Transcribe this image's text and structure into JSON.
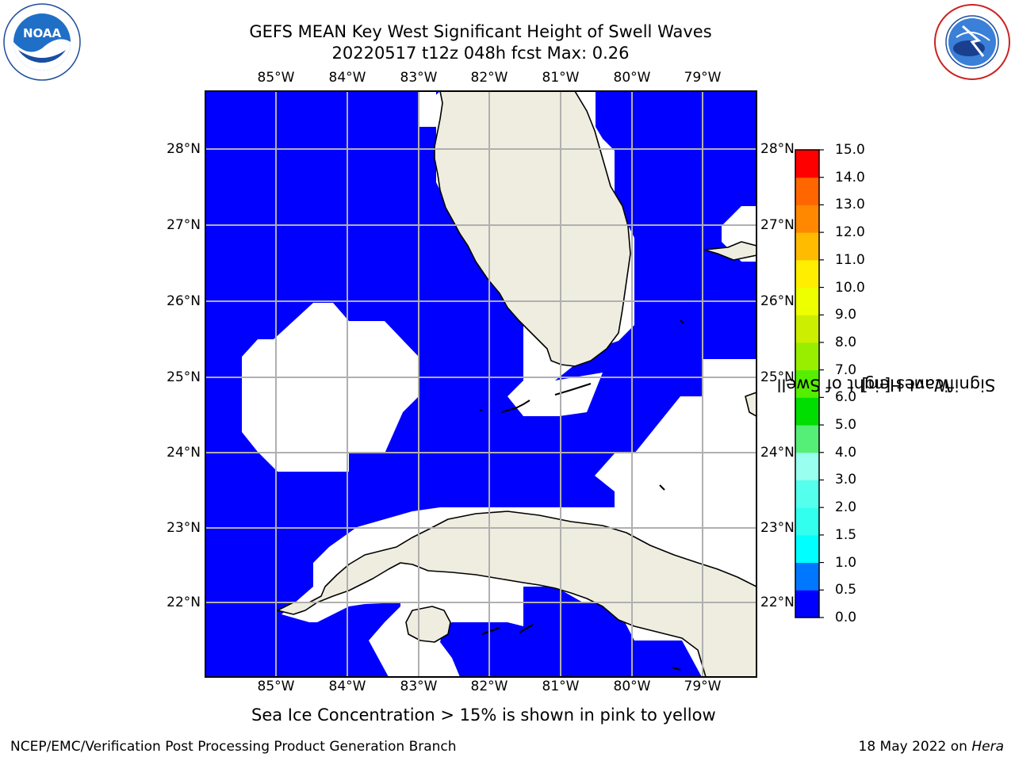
{
  "header": {
    "title_line1": "GEFS MEAN Key West Significant Height of Swell Waves",
    "title_line2": "20220517 t12z 048h fcst   Max: 0.26"
  },
  "map": {
    "lon_ticks": [
      "85°W",
      "84°W",
      "83°W",
      "82°W",
      "81°W",
      "80°W",
      "79°W"
    ],
    "lat_ticks": [
      "28°N",
      "27°N",
      "26°N",
      "25°N",
      "24°N",
      "23°N",
      "22°N"
    ],
    "colors": {
      "sea": "#0000ff",
      "land": "#eeeddf",
      "grid": "#b0b0b0",
      "no_data": "#ffffff"
    }
  },
  "colorbar": {
    "label": "Significant Height of Swell Waves [m]",
    "label_line1": "Significant Height of Swell",
    "label_line2": "Waves [m]",
    "ticks": [
      "0.0",
      "0.5",
      "1.0",
      "1.5",
      "2.0",
      "3.0",
      "4.0",
      "5.0",
      "6.0",
      "7.0",
      "8.0",
      "9.0",
      "10.0",
      "11.0",
      "12.0",
      "13.0",
      "14.0",
      "15.0"
    ],
    "colors": [
      "#0000ff",
      "#0077ff",
      "#00ffff",
      "#33ffee",
      "#55ffee",
      "#99ffee",
      "#55ee77",
      "#00dd00",
      "#55ee00",
      "#99ee00",
      "#ccee00",
      "#eeff00",
      "#ffee00",
      "#ffbb00",
      "#ff8800",
      "#ff6600",
      "#ff3300",
      "#ff0000"
    ]
  },
  "note": "Sea Ice Concentration > 15% is shown in pink to yellow",
  "footer": {
    "left": "NCEP/EMC/Verification Post Processing Product Generation Branch",
    "right_date": "18 May 2022 on ",
    "right_host": "Hera"
  },
  "logos": {
    "left": "NOAA",
    "right": "NATIONAL WEATHER SERVICE"
  }
}
